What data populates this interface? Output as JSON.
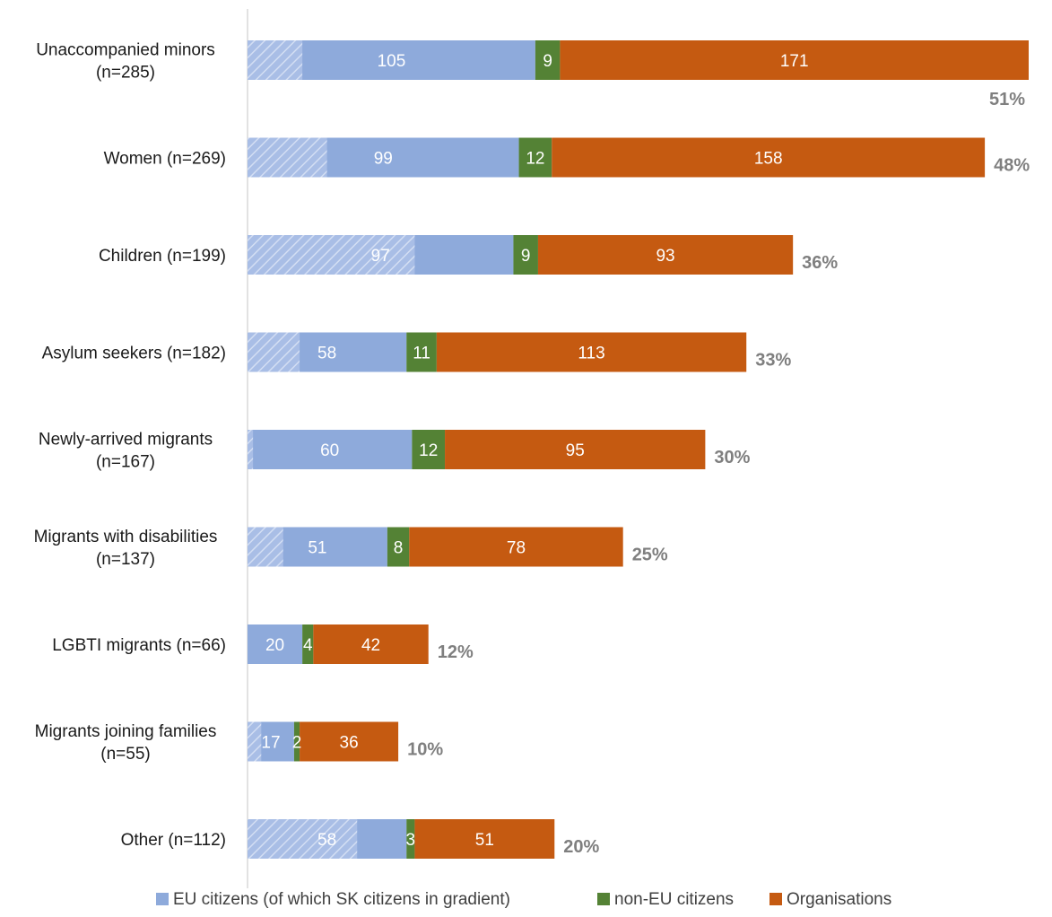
{
  "chart_data": {
    "type": "bar",
    "orientation": "horizontal",
    "stacked": true,
    "categories": [
      [
        "Unaccompanied minors",
        "(n=285)"
      ],
      [
        "Women (n=269)"
      ],
      [
        "Children (n=199)"
      ],
      [
        "Asylum seekers (n=182)"
      ],
      [
        "Newly-arrived migrants",
        "(n=167)"
      ],
      [
        "Migrants with disabilities",
        "(n=137)"
      ],
      [
        "LGBTI migrants (n=66)"
      ],
      [
        "Migrants joining families",
        "(n=55)"
      ],
      [
        "Other (n=112)"
      ]
    ],
    "series": [
      {
        "name": "EU citizens (of which SK citizens in gradient)",
        "color": "#8eaadb",
        "values": [
          105,
          99,
          97,
          58,
          60,
          51,
          20,
          17,
          58
        ]
      },
      {
        "name": "non-EU citizens",
        "color": "#548235",
        "values": [
          9,
          12,
          9,
          11,
          12,
          8,
          4,
          2,
          3
        ]
      },
      {
        "name": "Organisations",
        "color": "#c55a11",
        "values": [
          171,
          158,
          93,
          113,
          95,
          78,
          42,
          36,
          51
        ]
      }
    ],
    "sk_citizens_gradient_portion": [
      20,
      29,
      61,
      19,
      2,
      13,
      0,
      5,
      40
    ],
    "percent_labels": [
      "51%",
      "48%",
      "36%",
      "33%",
      "30%",
      "25%",
      "12%",
      "10%",
      "20%"
    ],
    "xlim": [
      0,
      285
    ],
    "grid": false,
    "legend_position": "bottom"
  }
}
